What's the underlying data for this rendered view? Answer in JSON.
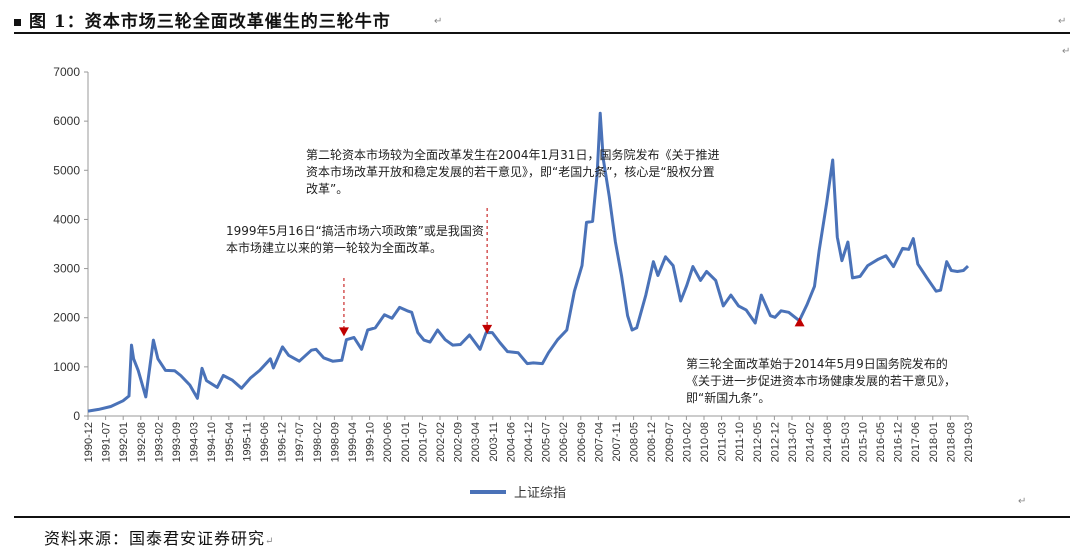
{
  "header": {
    "title": "图 1：资本市场三轮全面改革催生的三轮牛市"
  },
  "footer": {
    "source": "资料来源：国泰君安证券研究"
  },
  "colors": {
    "series": "#4a72b8",
    "axis": "#999999",
    "arrow": "#c00000"
  },
  "chart_data": {
    "type": "line",
    "title": "图 1：资本市场三轮全面改革催生的三轮牛市",
    "xlabel": "",
    "ylabel": "",
    "ylim": [
      0,
      7000
    ],
    "yticks": [
      0,
      1000,
      2000,
      3000,
      4000,
      5000,
      6000,
      7000
    ],
    "x_ticks": [
      "1990-12",
      "1991-07",
      "1992-01",
      "1992-08",
      "1993-02",
      "1993-09",
      "1994-03",
      "1994-10",
      "1995-04",
      "1995-11",
      "1996-06",
      "1996-12",
      "1997-07",
      "1998-02",
      "1998-09",
      "1999-04",
      "1999-10",
      "2000-06",
      "2001-01",
      "2001-07",
      "2002-02",
      "2002-09",
      "2003-04",
      "2003-11",
      "2004-06",
      "2004-12",
      "2005-07",
      "2006-02",
      "2006-09",
      "2007-04",
      "2007-11",
      "2008-05",
      "2008-12",
      "2009-07",
      "2010-02",
      "2010-08",
      "2011-03",
      "2011-10",
      "2012-05",
      "2012-12",
      "2013-07",
      "2014-02",
      "2014-08",
      "2015-03",
      "2015-10",
      "2016-05",
      "2016-12",
      "2017-06",
      "2018-01",
      "2018-08",
      "2019-03"
    ],
    "legend": {
      "position": "bottom",
      "entries": [
        "上证综指"
      ]
    },
    "series": [
      {
        "name": "上证综指",
        "points": [
          [
            1990.95,
            100
          ],
          [
            1991.3,
            130
          ],
          [
            1991.7,
            200
          ],
          [
            1992.1,
            300
          ],
          [
            1992.3,
            420
          ],
          [
            1992.38,
            1400
          ],
          [
            1992.45,
            1200
          ],
          [
            1992.6,
            900
          ],
          [
            1992.85,
            400
          ],
          [
            1993.1,
            1500
          ],
          [
            1993.25,
            1200
          ],
          [
            1993.5,
            900
          ],
          [
            1993.8,
            950
          ],
          [
            1994.0,
            800
          ],
          [
            1994.3,
            650
          ],
          [
            1994.55,
            350
          ],
          [
            1994.7,
            1000
          ],
          [
            1994.85,
            700
          ],
          [
            1995.2,
            600
          ],
          [
            1995.4,
            800
          ],
          [
            1995.7,
            750
          ],
          [
            1996.0,
            550
          ],
          [
            1996.3,
            800
          ],
          [
            1996.6,
            900
          ],
          [
            1996.95,
            1200
          ],
          [
            1997.05,
            950
          ],
          [
            1997.35,
            1450
          ],
          [
            1997.55,
            1200
          ],
          [
            1997.9,
            1150
          ],
          [
            1998.3,
            1300
          ],
          [
            1998.45,
            1400
          ],
          [
            1998.7,
            1150
          ],
          [
            1999.0,
            1150
          ],
          [
            1999.3,
            1100
          ],
          [
            1999.45,
            1600
          ],
          [
            1999.7,
            1550
          ],
          [
            1999.95,
            1400
          ],
          [
            2000.15,
            1700
          ],
          [
            2000.4,
            1850
          ],
          [
            2000.7,
            2000
          ],
          [
            2000.95,
            2050
          ],
          [
            2001.2,
            2150
          ],
          [
            2001.45,
            2200
          ],
          [
            2001.6,
            2050
          ],
          [
            2001.8,
            1750
          ],
          [
            2002.0,
            1500
          ],
          [
            2002.2,
            1550
          ],
          [
            2002.45,
            1700
          ],
          [
            2002.7,
            1600
          ],
          [
            2002.95,
            1400
          ],
          [
            2003.2,
            1500
          ],
          [
            2003.5,
            1600
          ],
          [
            2003.85,
            1400
          ],
          [
            2004.05,
            1650
          ],
          [
            2004.25,
            1750
          ],
          [
            2004.5,
            1450
          ],
          [
            2004.75,
            1350
          ],
          [
            2005.1,
            1250
          ],
          [
            2005.4,
            1100
          ],
          [
            2005.6,
            1050
          ],
          [
            2005.9,
            1100
          ],
          [
            2006.1,
            1250
          ],
          [
            2006.4,
            1600
          ],
          [
            2006.7,
            1700
          ],
          [
            2006.95,
            2600
          ],
          [
            2007.2,
            3000
          ],
          [
            2007.35,
            4000
          ],
          [
            2007.55,
            3900
          ],
          [
            2007.7,
            5000
          ],
          [
            2007.8,
            6100
          ],
          [
            2007.9,
            5300
          ],
          [
            2008.1,
            4400
          ],
          [
            2008.3,
            3600
          ],
          [
            2008.5,
            2800
          ],
          [
            2008.7,
            2100
          ],
          [
            2008.85,
            1700
          ],
          [
            2009.0,
            1850
          ],
          [
            2009.3,
            2400
          ],
          [
            2009.55,
            3200
          ],
          [
            2009.7,
            2800
          ],
          [
            2009.95,
            3300
          ],
          [
            2010.2,
            3000
          ],
          [
            2010.45,
            2400
          ],
          [
            2010.65,
            2600
          ],
          [
            2010.85,
            3100
          ],
          [
            2011.1,
            2700
          ],
          [
            2011.3,
            3000
          ],
          [
            2011.6,
            2700
          ],
          [
            2011.85,
            2300
          ],
          [
            2012.1,
            2400
          ],
          [
            2012.35,
            2300
          ],
          [
            2012.6,
            2100
          ],
          [
            2012.9,
            1950
          ],
          [
            2013.1,
            2400
          ],
          [
            2013.4,
            2100
          ],
          [
            2013.55,
            1950
          ],
          [
            2013.75,
            2200
          ],
          [
            2014.0,
            2050
          ],
          [
            2014.35,
            2000
          ],
          [
            2014.6,
            2200
          ],
          [
            2014.85,
            2700
          ],
          [
            2015.0,
            3300
          ],
          [
            2015.25,
            4400
          ],
          [
            2015.45,
            5150
          ],
          [
            2015.6,
            3700
          ],
          [
            2015.75,
            3100
          ],
          [
            2015.95,
            3600
          ],
          [
            2016.1,
            2750
          ],
          [
            2016.35,
            2900
          ],
          [
            2016.6,
            3000
          ],
          [
            2016.95,
            3250
          ],
          [
            2017.2,
            3200
          ],
          [
            2017.45,
            3100
          ],
          [
            2017.75,
            3350
          ],
          [
            2017.95,
            3450
          ],
          [
            2018.1,
            3550
          ],
          [
            2018.25,
            3150
          ],
          [
            2018.55,
            2750
          ],
          [
            2018.85,
            2600
          ],
          [
            2019.0,
            2500
          ],
          [
            2019.2,
            3200
          ],
          [
            2019.35,
            2900
          ],
          [
            2019.55,
            3000
          ],
          [
            2019.75,
            2900
          ],
          [
            2019.9,
            3050
          ]
        ]
      }
    ],
    "annotations": [
      {
        "text": "1999年5月16日“搞活市场六项政策”或是我国资本市场建立以来的第一轮较为全面改革。",
        "x": 1999.37,
        "y": 1600
      },
      {
        "text": "第二轮资本市场较为全面改革发生在2004年1月31日，国务院发布《关于推进资本市场改革开放和稳定发展的若干意见》，即“老国九条”，核心是“股权分置改革”。",
        "x": 2004.08,
        "y": 1650
      },
      {
        "text": "第三轮全面改革始于2014年5月9日国务院发布的《关于进一步促进资本市场健康发展的若干意见》，即“新国九条”。",
        "x": 2014.36,
        "y": 2150
      }
    ]
  }
}
